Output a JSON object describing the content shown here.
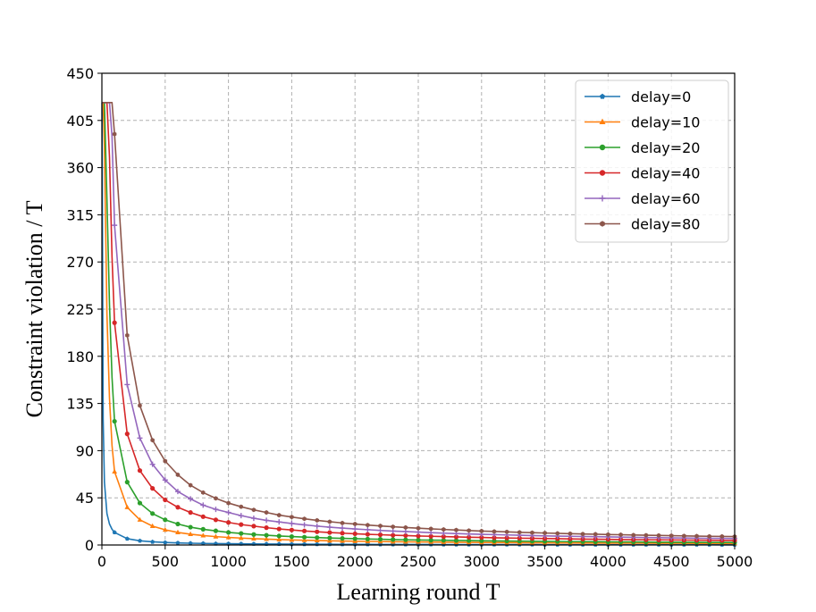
{
  "chart_data": {
    "type": "line",
    "title": "",
    "xlabel": "Learning round T",
    "ylabel": "Constraint violation / T",
    "xlim": [
      0,
      5000
    ],
    "ylim": [
      0,
      450
    ],
    "xticks": [
      0,
      500,
      1000,
      1500,
      2000,
      2500,
      3000,
      3500,
      4000,
      4500,
      5000
    ],
    "yticks": [
      0,
      45,
      90,
      135,
      180,
      225,
      270,
      315,
      360,
      405,
      450
    ],
    "grid": true,
    "grid_style": "dashed",
    "legend_position": "top-right",
    "x": [
      1,
      10,
      20,
      40,
      60,
      80,
      100,
      200,
      300,
      400,
      500,
      600,
      700,
      800,
      900,
      1000,
      1100,
      1200,
      1300,
      1400,
      1500,
      1600,
      1700,
      1800,
      1900,
      2000,
      2100,
      2200,
      2300,
      2400,
      2500,
      2600,
      2700,
      2800,
      2900,
      3000,
      3100,
      3200,
      3300,
      3400,
      3500,
      3600,
      3700,
      3800,
      3900,
      4000,
      4100,
      4200,
      4300,
      4400,
      4500,
      4600,
      4700,
      4800,
      4900,
      5000
    ],
    "series": [
      {
        "name": "delay=0",
        "color": "#1f77b4",
        "marker": "pentagon",
        "values": [
          422,
          120,
          60,
          30,
          20,
          15,
          12,
          6,
          4,
          3,
          2.4,
          2,
          1.7,
          1.5,
          1.3,
          1.2,
          1.1,
          1,
          0.9,
          0.9,
          0.8,
          0.8,
          0.7,
          0.7,
          0.6,
          0.6,
          0.6,
          0.5,
          0.5,
          0.5,
          0.5,
          0.5,
          0.4,
          0.4,
          0.4,
          0.4,
          0.4,
          0.4,
          0.4,
          0.4,
          0.3,
          0.3,
          0.3,
          0.3,
          0.3,
          0.3,
          0.3,
          0.3,
          0.3,
          0.3,
          0.3,
          0.3,
          0.3,
          0.3,
          0.2,
          0.2
        ]
      },
      {
        "name": "delay=10",
        "color": "#ff7f0e",
        "marker": "triangle",
        "values": [
          422,
          422,
          380,
          220,
          140,
          95,
          70,
          36,
          24,
          18,
          14.5,
          12,
          10.3,
          9,
          8,
          7.2,
          6.6,
          6,
          5.6,
          5.2,
          4.8,
          4.5,
          4.3,
          4,
          3.8,
          3.6,
          3.4,
          3.3,
          3.1,
          3,
          2.9,
          2.8,
          2.7,
          2.6,
          2.5,
          2.4,
          2.3,
          2.3,
          2.2,
          2.1,
          2.1,
          2,
          2,
          1.9,
          1.9,
          1.8,
          1.8,
          1.7,
          1.7,
          1.6,
          1.6,
          1.6,
          1.5,
          1.5,
          1.5,
          1.4
        ]
      },
      {
        "name": "delay=20",
        "color": "#2ca02c",
        "marker": "circle",
        "values": [
          422,
          422,
          422,
          330,
          230,
          160,
          118,
          60,
          40,
          30,
          24,
          20,
          17,
          15,
          13.5,
          12,
          11,
          10,
          9.3,
          8.6,
          8,
          7.5,
          7.1,
          6.7,
          6.3,
          6,
          5.7,
          5.5,
          5.2,
          5,
          4.8,
          4.6,
          4.5,
          4.3,
          4.2,
          4,
          3.9,
          3.8,
          3.7,
          3.6,
          3.5,
          3.4,
          3.3,
          3.2,
          3.1,
          3,
          2.9,
          2.9,
          2.8,
          2.7,
          2.7,
          2.6,
          2.6,
          2.5,
          2.5,
          2.4
        ]
      },
      {
        "name": "delay=40",
        "color": "#d62728",
        "marker": "circle",
        "values": [
          422,
          422,
          422,
          422,
          370,
          275,
          212,
          106,
          71,
          54,
          43,
          36,
          31,
          27,
          24,
          21.5,
          19.5,
          18,
          16.5,
          15.3,
          14.3,
          13.4,
          12.6,
          11.9,
          11.3,
          10.7,
          10.2,
          9.8,
          9.3,
          9,
          8.6,
          8.3,
          8,
          7.7,
          7.4,
          7.2,
          6.9,
          6.7,
          6.5,
          6.3,
          6.1,
          6,
          5.8,
          5.6,
          5.5,
          5.4,
          5.2,
          5.1,
          5,
          4.9,
          4.8,
          4.7,
          4.6,
          4.5,
          4.4,
          4.3
        ]
      },
      {
        "name": "delay=60",
        "color": "#9467bd",
        "marker": "plus",
        "values": [
          422,
          422,
          422,
          422,
          422,
          390,
          305,
          153,
          102,
          77,
          62,
          51,
          44,
          38,
          34,
          31,
          28,
          25.5,
          23.5,
          22,
          20.5,
          19.2,
          18,
          17,
          16.1,
          15.3,
          14.6,
          13.9,
          13.3,
          12.8,
          12.3,
          11.8,
          11.3,
          10.9,
          10.5,
          10.2,
          9.9,
          9.6,
          9.3,
          9,
          8.7,
          8.5,
          8.3,
          8.1,
          7.9,
          7.7,
          7.5,
          7.3,
          7.1,
          7,
          6.8,
          6.7,
          6.5,
          6.4,
          6.3,
          6.1
        ]
      },
      {
        "name": "delay=80",
        "color": "#8c564b",
        "marker": "hexagon",
        "values": [
          422,
          422,
          422,
          422,
          422,
          422,
          392,
          200,
          133,
          100,
          80,
          67,
          57,
          50,
          44.5,
          40,
          36.5,
          33.5,
          31,
          28.5,
          26.7,
          25,
          23.5,
          22.2,
          21,
          20,
          19,
          18.2,
          17.4,
          16.7,
          16,
          15.4,
          14.8,
          14.3,
          13.8,
          13.3,
          12.9,
          12.5,
          12.1,
          11.8,
          11.4,
          11.1,
          10.8,
          10.5,
          10.3,
          10,
          9.8,
          9.5,
          9.3,
          9.1,
          8.9,
          8.7,
          8.5,
          8.3,
          8.2,
          8
        ]
      }
    ]
  }
}
